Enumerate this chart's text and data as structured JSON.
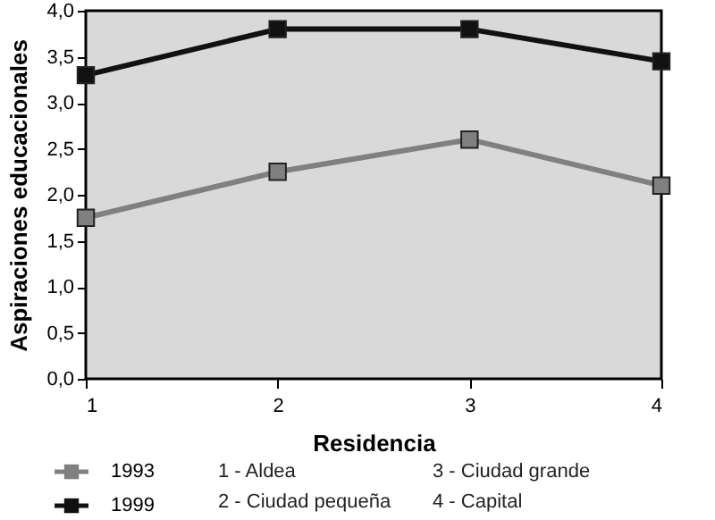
{
  "chart_data": {
    "type": "line",
    "xlabel": "Residencia",
    "ylabel": "Aspiraciones educacionales",
    "x": [
      1,
      2,
      3,
      4
    ],
    "xlim": [
      1,
      4
    ],
    "xticks": [
      1,
      2,
      3,
      4
    ],
    "ylim": [
      0,
      4
    ],
    "yticks": [
      {
        "value": 0,
        "label": "0,0"
      },
      {
        "value": 0.5,
        "label": "0,5"
      },
      {
        "value": 1,
        "label": "1,0"
      },
      {
        "value": 1.5,
        "label": "1,5"
      },
      {
        "value": 2,
        "label": "2,0"
      },
      {
        "value": 2.5,
        "label": "2,5"
      },
      {
        "value": 3,
        "label": "3,0"
      },
      {
        "value": 3.5,
        "label": "3,5"
      },
      {
        "value": 4,
        "label": "4,0"
      }
    ],
    "series": [
      {
        "name": "1993",
        "color": "#808080",
        "values": [
          1.75,
          2.25,
          2.6,
          2.1
        ]
      },
      {
        "name": "1999",
        "color": "#111111",
        "values": [
          3.3,
          3.8,
          3.8,
          3.45
        ]
      }
    ],
    "marker": "square",
    "grid": false,
    "legend": "bottom left",
    "annotations": [
      "1 - Aldea",
      "2 - Ciudad pequeña",
      "3 - Ciudad grande",
      "4 - Capital"
    ]
  }
}
